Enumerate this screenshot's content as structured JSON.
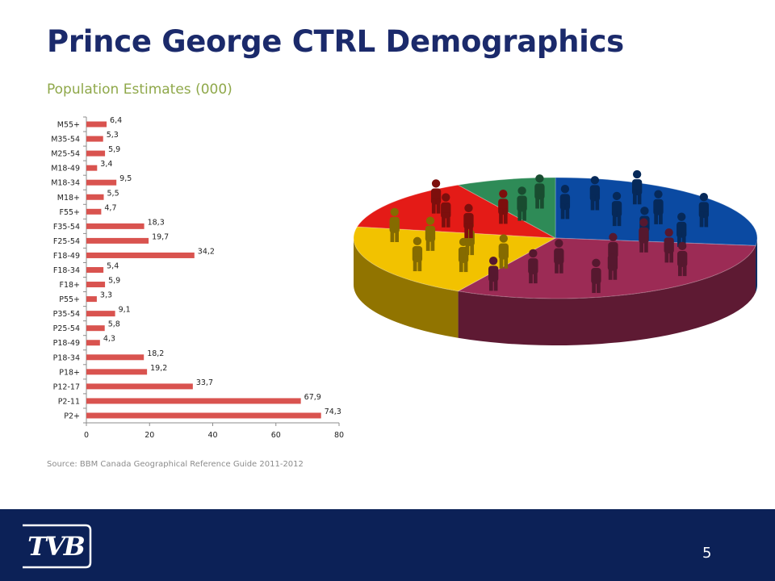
{
  "slide": {
    "title": "Prince George CTRL Demographics",
    "subtitle": "Population Estimates (000)",
    "source": "Source: BBM Canada Geographical Reference Guide 2011-2012",
    "page_number": "5",
    "logo_text": "TVB",
    "footer_color": "#0c2157"
  },
  "chart_data": [
    {
      "type": "bar",
      "orientation": "horizontal",
      "title": "Population Estimates (000)",
      "categories": [
        "M55+",
        "M35-54",
        "M25-54",
        "M18-49",
        "M18-34",
        "M18+",
        "F55+",
        "F35-54",
        "F25-54",
        "F18-49",
        "F18-34",
        "F18+",
        "P55+",
        "P35-54",
        "P25-54",
        "P18-49",
        "P18-34",
        "P18+",
        "P12-17",
        "P2-11",
        "P2+"
      ],
      "values": [
        6.4,
        5.3,
        5.9,
        3.4,
        9.5,
        5.5,
        4.7,
        18.3,
        19.7,
        34.2,
        5.4,
        5.9,
        3.3,
        9.1,
        5.8,
        4.3,
        18.2,
        19.2,
        33.7,
        67.9,
        74.3
      ],
      "data_labels": [
        "6,4",
        "5,3",
        "5,9",
        "3,4",
        "9,5",
        "5,5",
        "4,7",
        "18,3",
        "19,7",
        "34,2",
        "5,4",
        "5,9",
        "3,3",
        "9,1",
        "5,8",
        "4,3",
        "18,2",
        "19,2",
        "33,7",
        "67,9",
        "74,3"
      ],
      "xlim": [
        0,
        80
      ],
      "xticks": [
        "0",
        "20",
        "40",
        "60",
        "80"
      ],
      "bar_color": "#d9534f",
      "grid": false,
      "legend": "none"
    },
    {
      "type": "pie",
      "style": "3d decorative, unlabeled",
      "slices": [
        {
          "color": "#0b4aa2",
          "value": 27
        },
        {
          "color": "#9c2b55",
          "value": 31
        },
        {
          "color": "#f2c200",
          "value": 20
        },
        {
          "color": "#e41b17",
          "value": 14
        },
        {
          "color": "#2e8b57",
          "value": 8
        }
      ]
    }
  ]
}
